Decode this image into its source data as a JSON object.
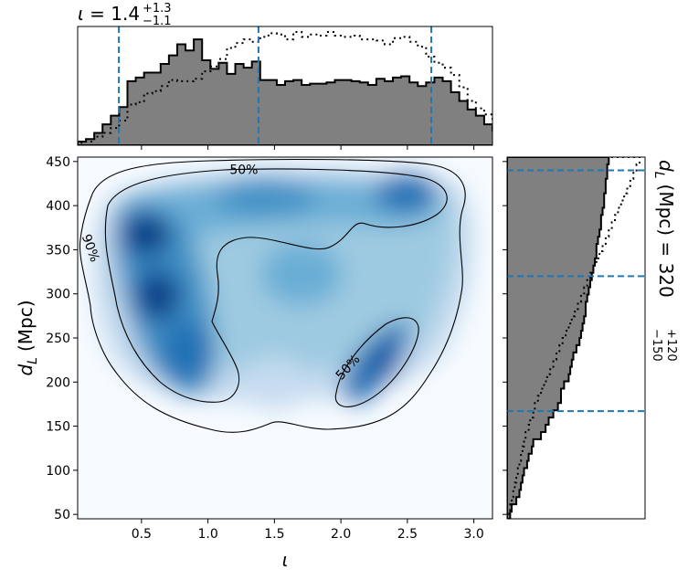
{
  "chart_data": {
    "type": "heatmap",
    "title": {
      "symbol": "ι",
      "value": "1.4",
      "plus": "+1.3",
      "minus": "−1.1"
    },
    "xlabel": "ι",
    "ylabel": "d",
    "ylabel_sub": "L",
    "ylabel_unit": "(Mpc)",
    "side_label": {
      "symbol": "d",
      "sub": "L",
      "unit": "(Mpc)",
      "value": "320",
      "plus": "+120",
      "minus": "−150"
    },
    "xlim": [
      0.02,
      3.14
    ],
    "ylim": [
      45,
      455
    ],
    "xticks": [
      0.5,
      1.0,
      1.5,
      2.0,
      2.5,
      3.0
    ],
    "xtick_labels": [
      "0.5",
      "1.0",
      "1.5",
      "2.0",
      "2.5",
      "3.0"
    ],
    "yticks": [
      50,
      100,
      150,
      200,
      250,
      300,
      350,
      400,
      450
    ],
    "ytick_labels": [
      "50",
      "100",
      "150",
      "200",
      "250",
      "300",
      "350",
      "400",
      "450"
    ],
    "contour_labels": [
      {
        "text": "50%",
        "x": 1.27,
        "y": 441,
        "rotation": 0
      },
      {
        "text": "90%",
        "x": 0.12,
        "y": 352,
        "rotation": 70
      },
      {
        "text": "50%",
        "x": 2.05,
        "y": 217,
        "rotation": -48
      }
    ],
    "iota_quantiles": [
      0.33,
      1.38,
      2.68
    ],
    "dl_quantiles": [
      167,
      320,
      440
    ],
    "colormap": [
      "#f7fbff",
      "#deebf7",
      "#c6dbef",
      "#9ecae1",
      "#6baed6",
      "#4292c6",
      "#2171b5",
      "#08519c",
      "#08306b"
    ],
    "hist_fill": "#808080",
    "quantile_color": "#1f77b4",
    "iota_hist": {
      "edges_start": 0.02,
      "bin_width": 0.0624,
      "posterior": [
        3,
        5,
        10,
        17,
        24,
        31,
        52,
        55,
        59,
        59,
        66,
        73,
        82,
        77,
        86,
        69,
        62,
        67,
        58,
        66,
        63,
        68,
        53,
        53,
        49,
        52,
        53,
        49,
        50,
        50,
        51,
        53,
        53,
        52,
        51,
        49,
        54,
        52,
        55,
        56,
        51,
        48,
        51,
        55,
        52,
        43,
        36,
        29,
        24,
        17,
        12,
        11,
        8,
        5,
        4,
        3
      ],
      "prior": [
        2,
        3,
        7,
        10,
        14,
        20,
        33,
        35,
        42,
        44,
        48,
        53,
        52,
        52,
        54,
        60,
        64,
        70,
        79,
        83,
        86,
        84,
        88,
        91,
        90,
        86,
        92,
        88,
        90,
        89,
        92,
        89,
        88,
        89,
        86,
        86,
        85,
        82,
        87,
        88,
        84,
        80,
        72,
        67,
        63,
        57,
        47,
        36,
        30,
        25,
        20,
        16,
        13,
        9,
        6,
        4
      ]
    },
    "dl_hist": {
      "edges_start": 45,
      "bin_width": 8.2,
      "posterior": [
        2,
        3,
        6,
        8,
        9,
        10,
        11,
        13,
        14,
        16,
        17,
        22,
        25,
        27,
        30,
        33,
        35,
        35,
        37,
        40,
        41,
        42,
        43,
        45,
        47,
        48,
        49,
        50,
        51,
        51,
        52,
        53,
        54,
        55,
        56,
        57,
        58,
        58,
        59,
        60,
        61,
        61,
        62,
        63,
        63,
        64,
        64,
        65,
        65,
        66
      ],
      "prior": [
        1,
        2,
        3,
        4,
        5,
        6,
        7,
        8,
        9,
        10,
        11,
        12,
        14,
        15,
        17,
        18,
        20,
        22,
        24,
        26,
        28,
        30,
        32,
        34,
        36,
        38,
        40,
        42,
        44,
        46,
        48,
        50,
        52,
        54,
        56,
        58,
        60,
        62,
        64,
        66,
        68,
        70,
        72,
        74,
        76,
        78,
        80,
        82,
        84,
        86
      ]
    }
  }
}
